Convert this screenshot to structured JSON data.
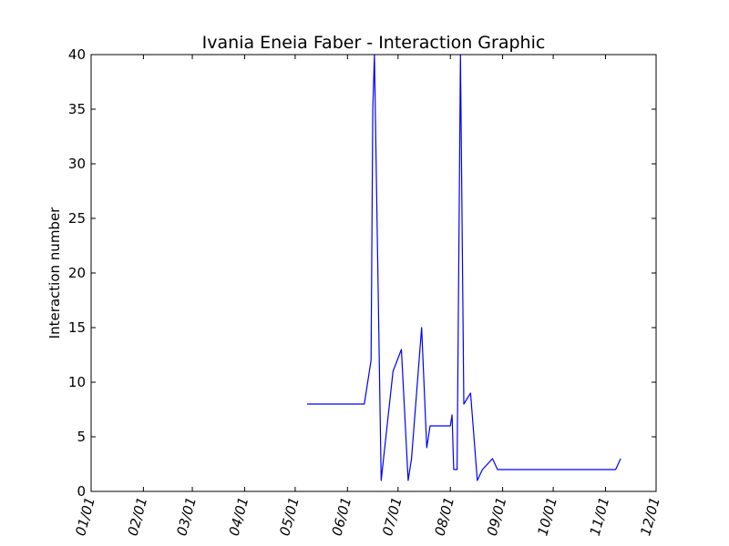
{
  "chart_data": {
    "type": "line",
    "title": "Ivania Eneia Faber - Interaction Graphic",
    "xlabel": "",
    "ylabel": "Interaction number",
    "xaxis": {
      "type": "date",
      "range": [
        "01/01",
        "12/01"
      ],
      "ticks": [
        "01/01",
        "02/01",
        "03/01",
        "04/01",
        "05/01",
        "06/01",
        "07/01",
        "08/01",
        "09/01",
        "10/01",
        "11/01",
        "12/01"
      ]
    },
    "ylim": [
      0,
      40
    ],
    "yticks": [
      0,
      5,
      10,
      15,
      20,
      25,
      30,
      35,
      40
    ],
    "grid": false,
    "line_color": "#0000ff",
    "series": [
      {
        "x": [
          "05/08",
          "06/08",
          "06/11",
          "06/15",
          "06/16",
          "06/17",
          "06/21",
          "06/28",
          "07/03",
          "07/07",
          "07/09",
          "07/15",
          "07/18",
          "07/20",
          "07/24",
          "08/01",
          "08/02",
          "08/03",
          "08/05",
          "08/07",
          "08/09",
          "08/13",
          "08/17",
          "08/20",
          "08/26",
          "08/29",
          "08/30",
          "09/02",
          "09/16",
          "09/29",
          "10/03",
          "10/07",
          "10/10",
          "10/17",
          "10/26",
          "11/07",
          "11/10"
        ],
        "y": [
          8,
          8,
          8,
          12,
          35,
          40,
          1,
          11,
          13,
          1,
          3,
          15,
          4,
          6,
          6,
          6,
          7,
          2,
          2,
          40,
          8,
          9,
          1,
          2,
          3,
          2,
          2,
          2,
          2,
          2,
          2,
          2,
          2,
          2,
          2,
          2,
          3
        ]
      }
    ]
  }
}
